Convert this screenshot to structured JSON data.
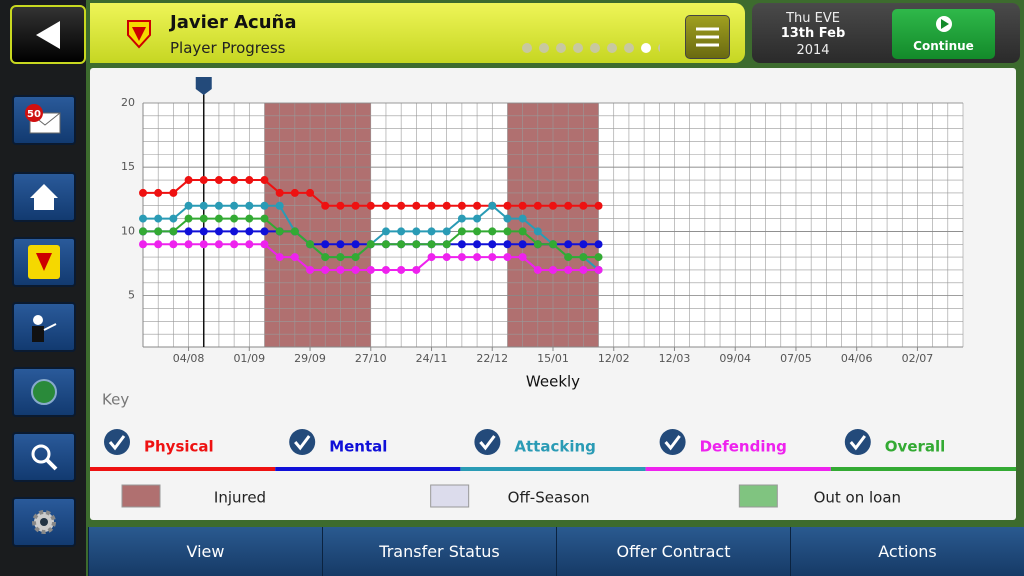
{
  "header": {
    "title": "Javier Acuña",
    "subtitle": "Player Progress",
    "day": "Thu EVE",
    "date": "13th Feb",
    "year": "2014",
    "continue": "Continue"
  },
  "sidebar": {
    "inbox_count": 50
  },
  "chart_data": {
    "type": "line",
    "x_label": "Weekly",
    "key_title": "Key",
    "x": [
      0,
      1,
      2,
      3,
      4,
      5,
      6,
      7,
      8,
      9,
      10,
      11,
      12,
      13,
      14,
      15,
      16,
      17,
      18,
      19,
      20,
      21,
      22,
      23,
      24,
      25,
      26,
      27,
      28,
      29,
      30
    ],
    "xlim": [
      0,
      54
    ],
    "xticks": [
      {
        "value": 3,
        "label": "04/08"
      },
      {
        "value": 7,
        "label": "01/09"
      },
      {
        "value": 11,
        "label": "29/09"
      },
      {
        "value": 15,
        "label": "27/10"
      },
      {
        "value": 19,
        "label": "24/11"
      },
      {
        "value": 23,
        "label": "22/12"
      },
      {
        "value": 27,
        "label": "15/01"
      },
      {
        "value": 31,
        "label": "12/02"
      },
      {
        "value": 35,
        "label": "12/03"
      },
      {
        "value": 39,
        "label": "09/04"
      },
      {
        "value": 43,
        "label": "07/05"
      },
      {
        "value": 47,
        "label": "04/06"
      },
      {
        "value": 51,
        "label": "02/07"
      }
    ],
    "ylim": [
      1,
      20
    ],
    "yticks": [
      5,
      10,
      15,
      20
    ],
    "grid": true,
    "series": [
      {
        "name": "Physical",
        "color": "#ee1111",
        "values": [
          13,
          13,
          13,
          14,
          14,
          14,
          14,
          14,
          14,
          13,
          13,
          13,
          12,
          12,
          12,
          12,
          12,
          12,
          12,
          12,
          12,
          12,
          12,
          12,
          12,
          12,
          12,
          12,
          12,
          12,
          12
        ]
      },
      {
        "name": "Mental",
        "color": "#1010d8",
        "values": [
          10,
          10,
          10,
          10,
          10,
          10,
          10,
          10,
          10,
          10,
          10,
          9,
          9,
          9,
          9,
          9,
          9,
          9,
          9,
          9,
          9,
          9,
          9,
          9,
          9,
          9,
          9,
          9,
          9,
          9,
          9
        ]
      },
      {
        "name": "Attacking",
        "color": "#2a9bb5",
        "values": [
          11,
          11,
          11,
          12,
          12,
          12,
          12,
          12,
          12,
          12,
          10,
          9,
          8,
          8,
          8,
          9,
          10,
          10,
          10,
          10,
          10,
          11,
          11,
          12,
          11,
          11,
          10,
          9,
          8,
          8,
          7
        ]
      },
      {
        "name": "Defending",
        "color": "#ee22ee",
        "values": [
          9,
          9,
          9,
          9,
          9,
          9,
          9,
          9,
          9,
          8,
          8,
          7,
          7,
          7,
          7,
          7,
          7,
          7,
          7,
          8,
          8,
          8,
          8,
          8,
          8,
          8,
          7,
          7,
          7,
          7,
          7
        ]
      },
      {
        "name": "Overall",
        "color": "#33aa33",
        "values": [
          10,
          10,
          10,
          11,
          11,
          11,
          11,
          11,
          11,
          10,
          10,
          9,
          8,
          8,
          8,
          9,
          9,
          9,
          9,
          9,
          9,
          10,
          10,
          10,
          10,
          10,
          9,
          9,
          8,
          8,
          8
        ]
      }
    ],
    "periods": [
      {
        "name": "Injured",
        "color": "#b07070",
        "ranges": [
          [
            8,
            15
          ],
          [
            24,
            30
          ]
        ]
      },
      {
        "name": "Off-Season",
        "color": "#dcdcec",
        "ranges": []
      },
      {
        "name": "Out on loan",
        "color": "#80c480",
        "ranges": []
      }
    ],
    "marker_x": 4
  },
  "buttons": [
    "View",
    "Transfer Status",
    "Offer Contract",
    "Actions"
  ]
}
